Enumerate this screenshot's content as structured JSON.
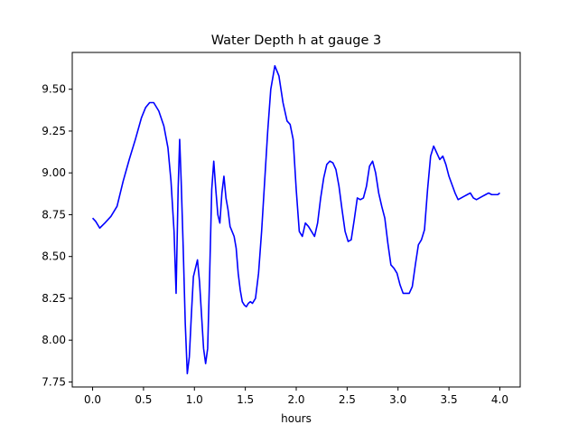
{
  "chart_data": {
    "type": "line",
    "title": "Water Depth h at gauge 3",
    "xlabel": "hours",
    "ylabel": "",
    "xlim": [
      -0.2,
      4.2
    ],
    "ylim": [
      7.72,
      9.72
    ],
    "xticks": [
      0.0,
      0.5,
      1.0,
      1.5,
      2.0,
      2.5,
      3.0,
      3.5,
      4.0
    ],
    "xtick_labels": [
      "0.0",
      "0.5",
      "1.0",
      "1.5",
      "2.0",
      "2.5",
      "3.0",
      "3.5",
      "4.0"
    ],
    "yticks": [
      7.75,
      8.0,
      8.25,
      8.5,
      8.75,
      9.0,
      9.25,
      9.5
    ],
    "ytick_labels": [
      "7.75",
      "8.00",
      "8.25",
      "8.50",
      "8.75",
      "9.00",
      "9.25",
      "9.50"
    ],
    "grid": false,
    "series": [
      {
        "color": "#0000ff",
        "x": [
          0.0,
          0.03,
          0.07,
          0.12,
          0.18,
          0.24,
          0.3,
          0.36,
          0.42,
          0.48,
          0.52,
          0.56,
          0.6,
          0.65,
          0.7,
          0.74,
          0.77,
          0.8,
          0.82,
          0.84,
          0.855,
          0.87,
          0.89,
          0.91,
          0.93,
          0.95,
          0.97,
          0.99,
          1.01,
          1.03,
          1.05,
          1.07,
          1.09,
          1.11,
          1.13,
          1.15,
          1.17,
          1.19,
          1.21,
          1.23,
          1.25,
          1.27,
          1.29,
          1.31,
          1.33,
          1.35,
          1.37,
          1.39,
          1.41,
          1.43,
          1.45,
          1.47,
          1.49,
          1.51,
          1.53,
          1.55,
          1.57,
          1.6,
          1.63,
          1.66,
          1.69,
          1.72,
          1.75,
          1.79,
          1.83,
          1.87,
          1.91,
          1.94,
          1.97,
          2.0,
          2.03,
          2.06,
          2.09,
          2.12,
          2.15,
          2.18,
          2.21,
          2.24,
          2.27,
          2.3,
          2.33,
          2.36,
          2.39,
          2.42,
          2.45,
          2.48,
          2.51,
          2.54,
          2.57,
          2.6,
          2.63,
          2.66,
          2.69,
          2.72,
          2.75,
          2.78,
          2.81,
          2.84,
          2.87,
          2.9,
          2.93,
          2.96,
          2.99,
          3.02,
          3.05,
          3.08,
          3.11,
          3.14,
          3.17,
          3.2,
          3.23,
          3.26,
          3.29,
          3.32,
          3.35,
          3.38,
          3.41,
          3.44,
          3.47,
          3.5,
          3.53,
          3.56,
          3.59,
          3.62,
          3.65,
          3.68,
          3.71,
          3.74,
          3.77,
          3.8,
          3.83,
          3.86,
          3.89,
          3.92,
          3.95,
          3.98,
          4.0
        ],
        "y": [
          8.73,
          8.71,
          8.67,
          8.7,
          8.74,
          8.8,
          8.95,
          9.08,
          9.2,
          9.33,
          9.39,
          9.42,
          9.42,
          9.37,
          9.28,
          9.15,
          8.95,
          8.65,
          8.28,
          8.9,
          9.2,
          8.95,
          8.55,
          8.1,
          7.8,
          7.9,
          8.15,
          8.38,
          8.43,
          8.48,
          8.35,
          8.15,
          7.95,
          7.86,
          7.95,
          8.4,
          8.9,
          9.07,
          8.9,
          8.75,
          8.7,
          8.88,
          8.98,
          8.85,
          8.78,
          8.68,
          8.65,
          8.62,
          8.55,
          8.4,
          8.3,
          8.23,
          8.21,
          8.2,
          8.22,
          8.23,
          8.22,
          8.25,
          8.4,
          8.65,
          8.95,
          9.25,
          9.5,
          9.64,
          9.58,
          9.42,
          9.31,
          9.29,
          9.2,
          8.9,
          8.65,
          8.62,
          8.7,
          8.68,
          8.65,
          8.62,
          8.7,
          8.85,
          8.97,
          9.05,
          9.07,
          9.06,
          9.02,
          8.92,
          8.78,
          8.65,
          8.59,
          8.6,
          8.72,
          8.85,
          8.84,
          8.85,
          8.92,
          9.04,
          9.07,
          9.0,
          8.88,
          8.8,
          8.73,
          8.58,
          8.45,
          8.43,
          8.4,
          8.33,
          8.28,
          8.28,
          8.28,
          8.32,
          8.45,
          8.57,
          8.6,
          8.66,
          8.9,
          9.1,
          9.16,
          9.12,
          9.08,
          9.1,
          9.05,
          8.98,
          8.93,
          8.88,
          8.84,
          8.85,
          8.86,
          8.87,
          8.88,
          8.85,
          8.84,
          8.85,
          8.86,
          8.87,
          8.88,
          8.87,
          8.87,
          8.87,
          8.88
        ]
      }
    ]
  }
}
